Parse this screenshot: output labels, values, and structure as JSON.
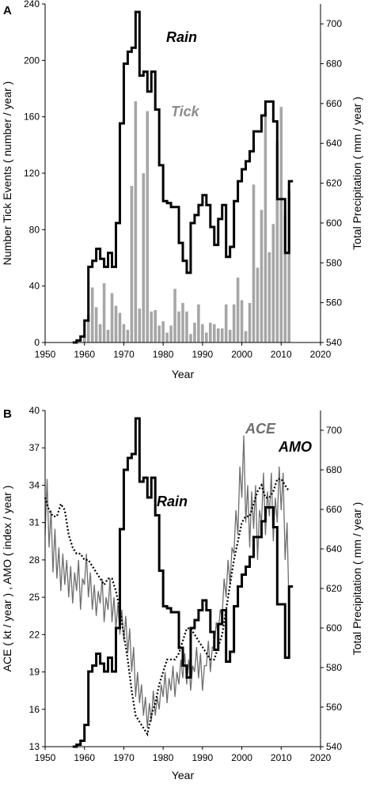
{
  "chart_data": [
    {
      "panel": "A",
      "type": "bar",
      "xlabel": "Year",
      "ylabel": "Number Tick Events ( number / year )",
      "y2label": "Total Precipitation ( mm / year )",
      "xlim": [
        1950,
        2020
      ],
      "xticks": [
        1950,
        1960,
        1970,
        1980,
        1990,
        2000,
        2010,
        2020
      ],
      "ylim": [
        0,
        240
      ],
      "yticks": [
        0,
        40,
        80,
        120,
        160,
        200,
        240
      ],
      "y2lim": [
        540,
        710
      ],
      "y2ticks": [
        540,
        560,
        580,
        600,
        620,
        640,
        660,
        680,
        700
      ],
      "annotations": [
        "Rain",
        "Tick"
      ],
      "series": [
        {
          "name": "Tick",
          "type": "bar",
          "axis": "left",
          "color": "#a6a6a6",
          "x": [
            1960,
            1961,
            1962,
            1963,
            1964,
            1965,
            1966,
            1967,
            1968,
            1969,
            1970,
            1971,
            1972,
            1973,
            1974,
            1975,
            1976,
            1977,
            1978,
            1979,
            1980,
            1981,
            1982,
            1983,
            1984,
            1985,
            1986,
            1987,
            1988,
            1989,
            1990,
            1991,
            1992,
            1993,
            1994,
            1995,
            1996,
            1997,
            1998,
            1999,
            2000,
            2001,
            2002,
            2003,
            2004,
            2005,
            2006,
            2007,
            2008,
            2009,
            2010,
            2011,
            2012
          ],
          "values": [
            6,
            20,
            39,
            25,
            13,
            42,
            9,
            35,
            26,
            21,
            13,
            9,
            111,
            171,
            24,
            120,
            164,
            22,
            23,
            12,
            15,
            7,
            12,
            38,
            22,
            28,
            22,
            6,
            14,
            27,
            13,
            7,
            14,
            13,
            10,
            10,
            27,
            9,
            27,
            46,
            30,
            8,
            28,
            112,
            53,
            94,
            164,
            64,
            84,
            143,
            167,
            90,
            108
          ]
        },
        {
          "name": "Rain",
          "type": "step",
          "axis": "right",
          "color": "#000000",
          "x": [
            1957,
            1958,
            1959,
            1960,
            1961,
            1962,
            1963,
            1964,
            1965,
            1966,
            1967,
            1968,
            1969,
            1970,
            1971,
            1972,
            1973,
            1974,
            1975,
            1976,
            1977,
            1978,
            1979,
            1980,
            1981,
            1982,
            1983,
            1984,
            1985,
            1986,
            1987,
            1988,
            1989,
            1990,
            1991,
            1992,
            1993,
            1994,
            1995,
            1996,
            1997,
            1998,
            1999,
            2000,
            2001,
            2002,
            2003,
            2004,
            2005,
            2006,
            2007,
            2008,
            2009,
            2010,
            2011,
            2012,
            2013
          ],
          "values": [
            540,
            541,
            543,
            551,
            578,
            581,
            587,
            582,
            578,
            585,
            578,
            600,
            650,
            680,
            686,
            688,
            706,
            674,
            676,
            666,
            676,
            657,
            629,
            611,
            610,
            608,
            608,
            590,
            581,
            575,
            600,
            604,
            609,
            614,
            609,
            598,
            589,
            602,
            609,
            583,
            588,
            611,
            621,
            627,
            631,
            636,
            646,
            646,
            654,
            661,
            661,
            651,
            612,
            612,
            585,
            621,
            621
          ]
        }
      ]
    },
    {
      "panel": "B",
      "type": "line",
      "xlabel": "Year",
      "ylabel": "ACE ( kt / year ) , AMO ( index / year )",
      "y2label": "Total Precipitation ( mm / year )",
      "xlim": [
        1950,
        2020
      ],
      "xticks": [
        1950,
        1960,
        1970,
        1980,
        1990,
        2000,
        2010,
        2020
      ],
      "ylim": [
        13,
        40
      ],
      "yticks": [
        13,
        16,
        19,
        22,
        25,
        28,
        31,
        34,
        37,
        40
      ],
      "y2lim": [
        540,
        710
      ],
      "y2ticks": [
        540,
        560,
        580,
        600,
        620,
        640,
        660,
        680,
        700
      ],
      "annotations": [
        "ACE",
        "AMO",
        "Rain"
      ],
      "series": [
        {
          "name": "ACE",
          "type": "line",
          "axis": "left",
          "color": "#6e6e6e",
          "x": [
            1950,
            1950.5,
            1951,
            1951.5,
            1952,
            1952.5,
            1953,
            1953.5,
            1954,
            1954.5,
            1955,
            1955.5,
            1956,
            1956.5,
            1957,
            1957.5,
            1958,
            1958.5,
            1959,
            1959.5,
            1960,
            1960.5,
            1961,
            1961.5,
            1962,
            1962.5,
            1963,
            1963.5,
            1964,
            1964.5,
            1965,
            1965.5,
            1966,
            1966.5,
            1967,
            1967.5,
            1968,
            1968.5,
            1969,
            1969.5,
            1970,
            1970.5,
            1971,
            1971.5,
            1972,
            1972.5,
            1973,
            1973.5,
            1974,
            1974.5,
            1975,
            1975.5,
            1976,
            1976.5,
            1977,
            1977.5,
            1978,
            1978.5,
            1979,
            1979.5,
            1980,
            1980.5,
            1981,
            1981.5,
            1982,
            1982.5,
            1983,
            1983.5,
            1984,
            1984.5,
            1985,
            1985.5,
            1986,
            1986.5,
            1987,
            1987.5,
            1988,
            1988.5,
            1989,
            1989.5,
            1990,
            1990.5,
            1991,
            1991.5,
            1992,
            1992.5,
            1993,
            1993.5,
            1994,
            1994.5,
            1995,
            1995.5,
            1996,
            1996.5,
            1997,
            1997.5,
            1998,
            1998.5,
            1999,
            1999.5,
            2000,
            2000.5,
            2001,
            2001.5,
            2002,
            2002.5,
            2003,
            2003.5,
            2004,
            2004.5,
            2005,
            2005.5,
            2006,
            2006.5,
            2007,
            2007.5,
            2008,
            2008.5,
            2009,
            2009.5,
            2010,
            2010.5,
            2011,
            2011.5,
            2012
          ],
          "values": [
            30,
            34.5,
            29,
            32,
            27,
            30.5,
            26.5,
            29,
            25.5,
            28.5,
            26,
            28,
            25,
            27.5,
            24.5,
            27,
            25.5,
            28,
            24,
            26.5,
            26,
            28.5,
            25,
            27,
            24,
            26,
            23.5,
            25.5,
            24.5,
            26.5,
            23,
            25,
            24,
            26.5,
            23,
            25,
            22.5,
            24.5,
            22,
            24,
            21.5,
            23.5,
            20.5,
            22.5,
            19,
            21,
            17,
            19,
            16.5,
            18,
            15.5,
            17,
            14.5,
            16.5,
            15,
            17.5,
            15.5,
            17,
            16,
            18,
            17,
            19,
            16.5,
            18.5,
            17.5,
            19.5,
            17,
            19,
            18,
            20,
            18.5,
            20.5,
            18,
            20,
            17.5,
            19.5,
            19,
            21,
            18.5,
            20.5,
            17.5,
            19.5,
            19.5,
            21.5,
            19,
            21,
            21,
            23,
            22,
            24,
            23.5,
            26.5,
            25,
            28,
            26,
            29,
            28.5,
            32,
            30,
            35.5,
            33,
            38,
            31,
            34,
            29,
            33.5,
            30.5,
            34,
            28,
            32,
            31,
            35,
            30,
            33.5,
            31.5,
            35,
            29.5,
            33,
            31,
            35.5,
            32,
            35,
            28,
            31,
            24
          ]
        },
        {
          "name": "AMO",
          "type": "line",
          "axis": "left",
          "color": "#000000",
          "x": [
            1950,
            1951,
            1952,
            1953,
            1954,
            1955,
            1956,
            1957,
            1958,
            1959,
            1960,
            1961,
            1962,
            1963,
            1964,
            1965,
            1966,
            1967,
            1968,
            1969,
            1970,
            1971,
            1972,
            1973,
            1974,
            1975,
            1976,
            1977,
            1978,
            1979,
            1980,
            1981,
            1982,
            1983,
            1984,
            1985,
            1986,
            1987,
            1988,
            1989,
            1990,
            1991,
            1992,
            1993,
            1994,
            1995,
            1996,
            1997,
            1998,
            1999,
            2000,
            2001,
            2002,
            2003,
            2004,
            2005,
            2006,
            2007,
            2008,
            2009,
            2010,
            2011,
            2012
          ],
          "values": [
            33,
            32,
            31.5,
            31.5,
            32.5,
            32,
            30,
            29,
            28.5,
            28.5,
            28,
            28,
            27.5,
            27,
            26.5,
            26,
            26.5,
            26.5,
            25.5,
            24,
            22,
            20,
            17.5,
            15.5,
            15,
            14.5,
            14,
            15.5,
            16.5,
            18,
            19,
            20,
            20,
            20,
            20.5,
            21.5,
            22.5,
            22.5,
            22,
            21.5,
            21,
            20.5,
            20,
            20,
            21,
            22,
            24,
            26,
            28,
            29.5,
            31,
            31.5,
            31.5,
            32.5,
            33.5,
            34,
            33,
            33,
            33.5,
            34.5,
            34.5,
            34,
            33.5
          ]
        },
        {
          "name": "Rain",
          "type": "step",
          "axis": "right",
          "color": "#000000",
          "x": [
            1957,
            1958,
            1959,
            1960,
            1961,
            1962,
            1963,
            1964,
            1965,
            1966,
            1967,
            1968,
            1969,
            1970,
            1971,
            1972,
            1973,
            1974,
            1975,
            1976,
            1977,
            1978,
            1979,
            1980,
            1981,
            1982,
            1983,
            1984,
            1985,
            1986,
            1987,
            1988,
            1989,
            1990,
            1991,
            1992,
            1993,
            1994,
            1995,
            1996,
            1997,
            1998,
            1999,
            2000,
            2001,
            2002,
            2003,
            2004,
            2005,
            2006,
            2007,
            2008,
            2009,
            2010,
            2011,
            2012,
            2013
          ],
          "values": [
            540,
            541,
            543,
            551,
            578,
            581,
            587,
            582,
            578,
            585,
            578,
            600,
            650,
            680,
            686,
            688,
            706,
            674,
            676,
            666,
            676,
            657,
            629,
            611,
            610,
            608,
            608,
            590,
            581,
            575,
            600,
            604,
            609,
            614,
            609,
            598,
            589,
            602,
            609,
            583,
            588,
            611,
            621,
            627,
            631,
            636,
            646,
            646,
            654,
            661,
            661,
            651,
            612,
            612,
            585,
            621,
            621
          ]
        }
      ]
    }
  ],
  "colors": {
    "tick_bars": "#a6a6a6",
    "ace_line": "#6e6e6e",
    "rain_line": "#000000",
    "amo_line": "#000000"
  }
}
